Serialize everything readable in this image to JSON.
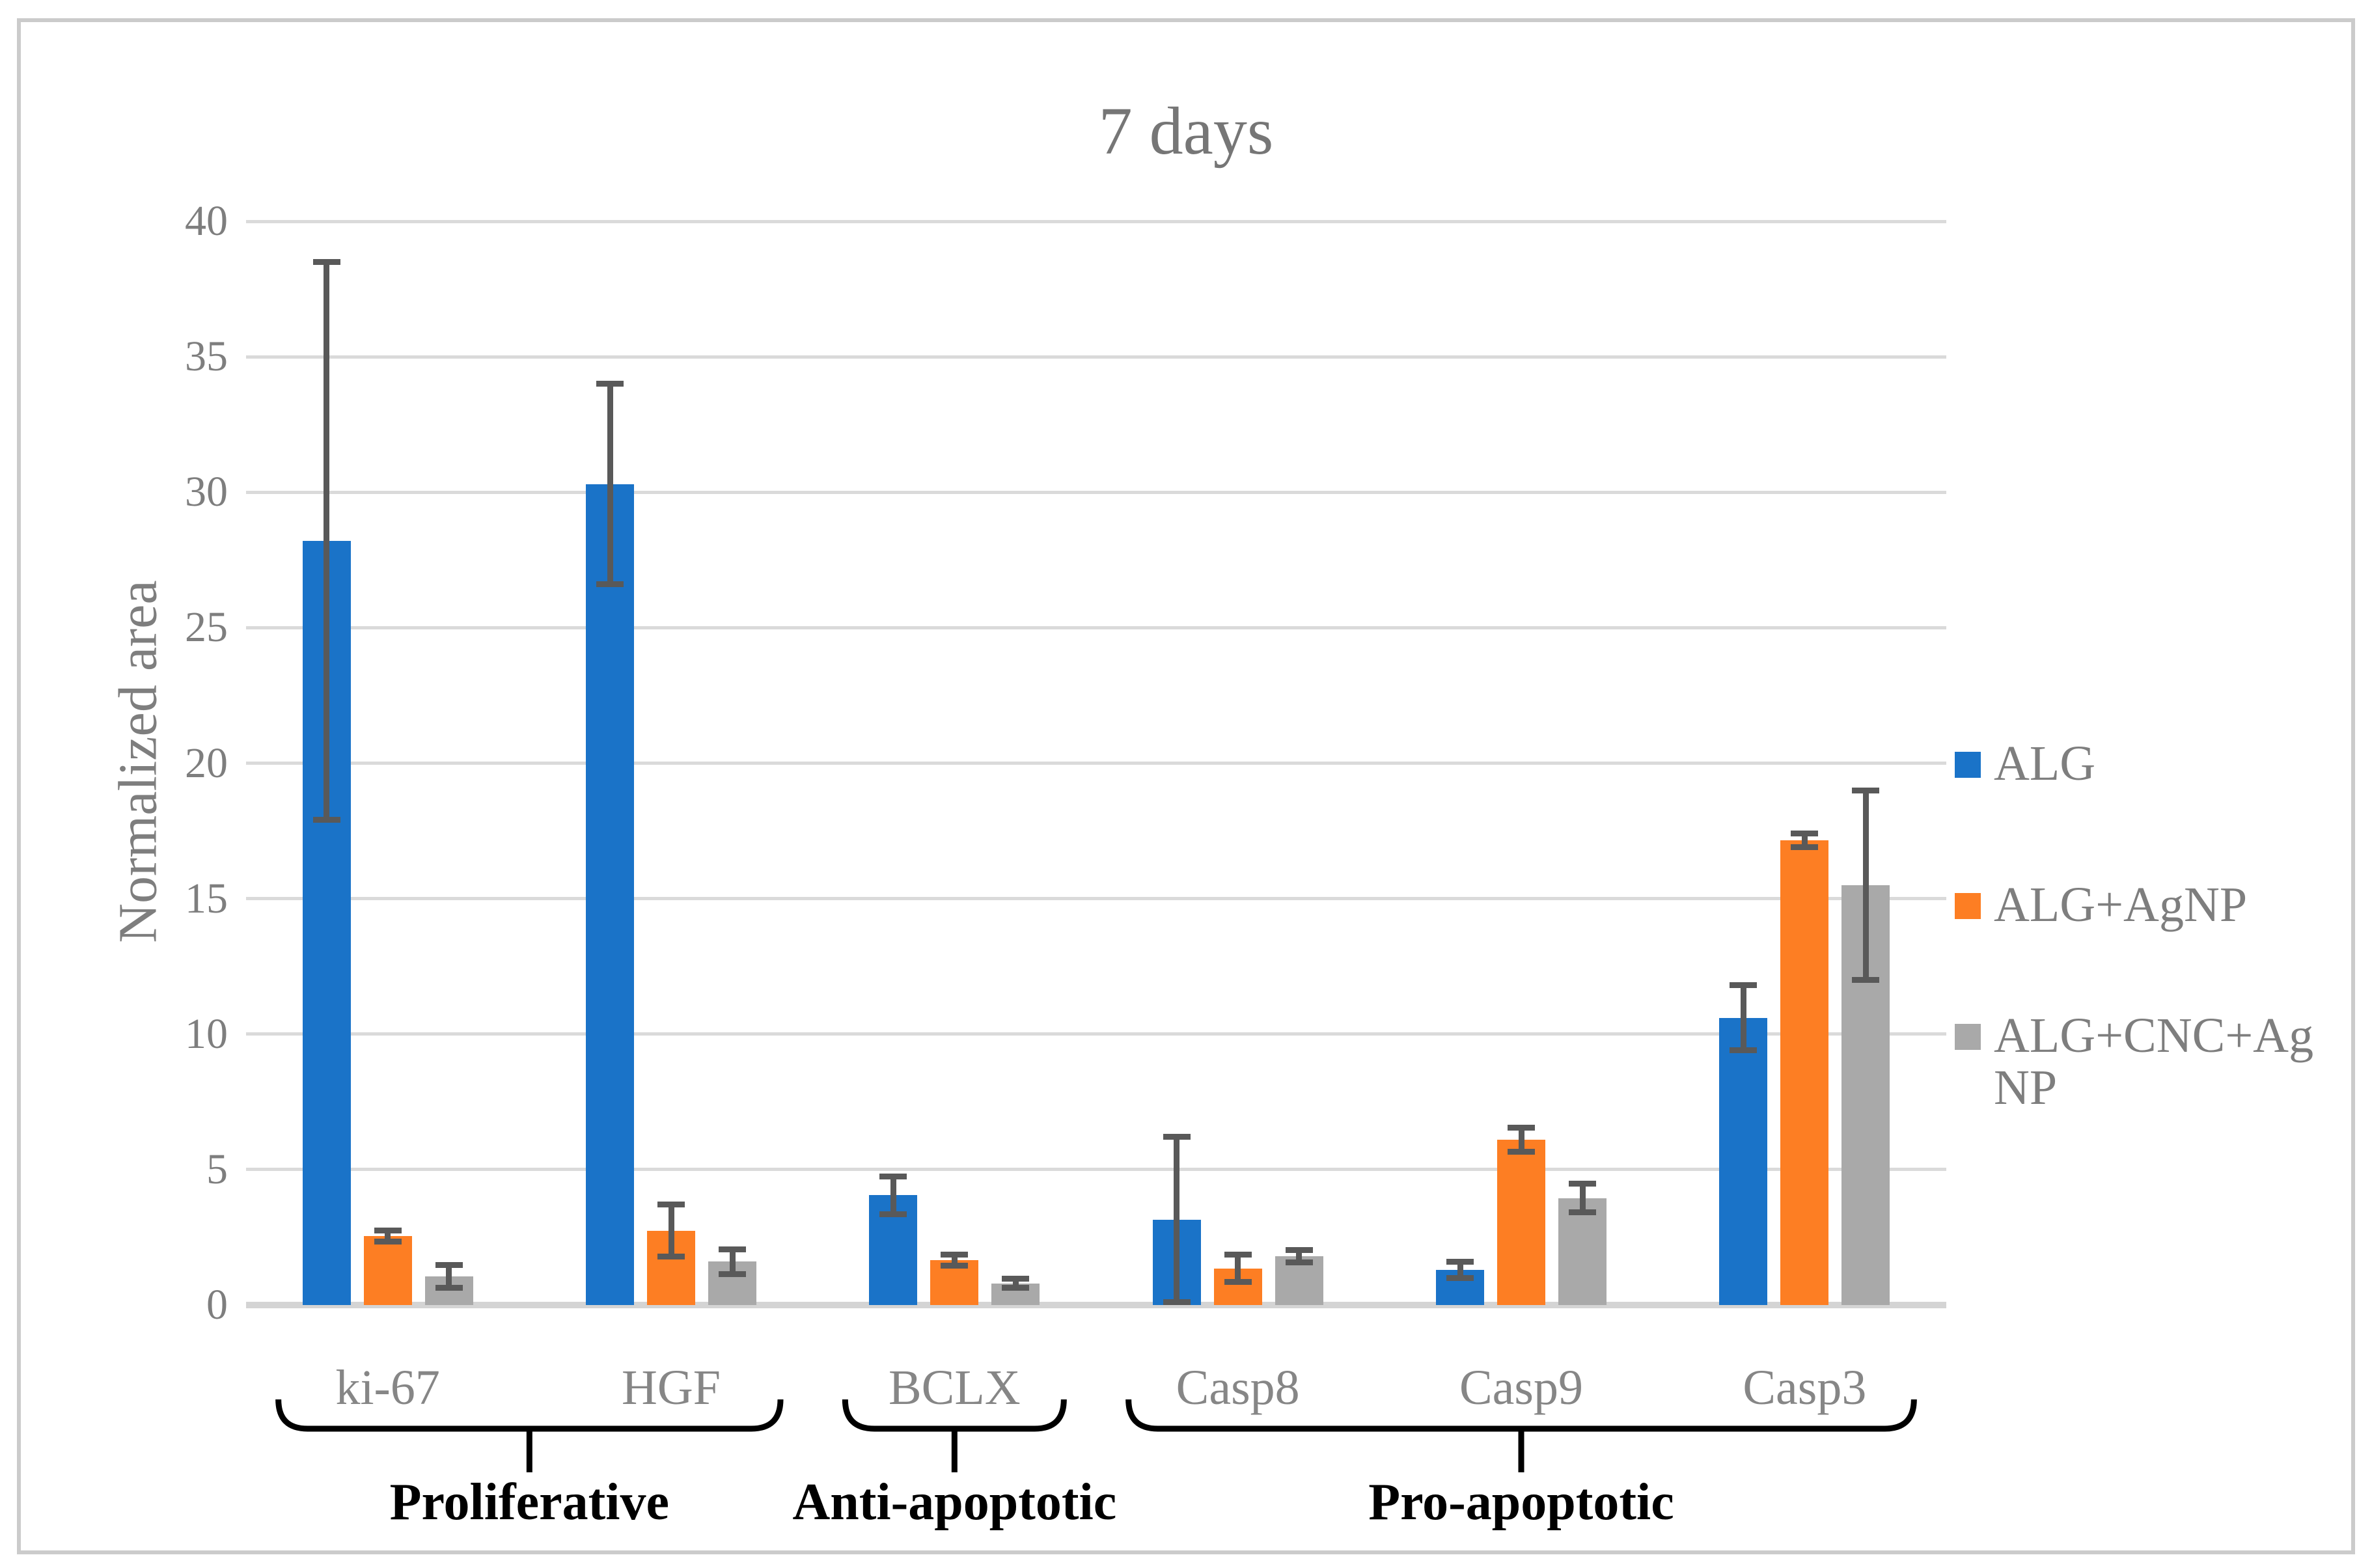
{
  "chart_data": {
    "type": "bar",
    "title": "7 days",
    "xlabel": "",
    "ylabel": "Normalized area",
    "ylim": [
      0,
      40
    ],
    "yticks": [
      0,
      5,
      10,
      15,
      20,
      25,
      30,
      35,
      40
    ],
    "grid": true,
    "legend_position": "right",
    "categories": [
      "ki-67",
      "HGF",
      "BCLX",
      "Casp8",
      "Casp9",
      "Casp3"
    ],
    "series": [
      {
        "name": "ALG",
        "color": "#1a73c8",
        "values": [
          28.2,
          30.3,
          4.05,
          3.15,
          1.3,
          10.6
        ],
        "errors": [
          10.3,
          3.7,
          0.7,
          3.05,
          0.3,
          1.2
        ],
        "legend_lines": [
          "ALG"
        ]
      },
      {
        "name": "ALG+AgNP",
        "color": "#fd7e23",
        "values": [
          2.55,
          2.75,
          1.65,
          1.35,
          6.1,
          17.15
        ],
        "errors": [
          0.2,
          0.95,
          0.2,
          0.5,
          0.45,
          0.25
        ],
        "legend_lines": [
          "ALG+AgNP"
        ]
      },
      {
        "name": "ALG+CNC+AgNP",
        "color": "#a9a9a9",
        "values": [
          1.05,
          1.6,
          0.8,
          1.8,
          3.95,
          15.5
        ],
        "errors": [
          0.42,
          0.46,
          0.17,
          0.22,
          0.53,
          3.5
        ],
        "legend_lines": [
          "ALG+CNC+Ag",
          "NP"
        ]
      }
    ],
    "groups": [
      {
        "label": "Proliferative",
        "from": 0,
        "to": 1
      },
      {
        "label": "Anti-apoptotic",
        "from": 2,
        "to": 2
      },
      {
        "label": "Pro-apoptotic",
        "from": 3,
        "to": 5
      }
    ]
  },
  "styles": {
    "background": "#ffffff",
    "border": "#cbcbcb",
    "gridline": "#dadada",
    "baseline": "#d4d4d4",
    "error_bar": "#595959",
    "tick_text": "#7e7e7e",
    "category_text": "#868686",
    "title_text": "#767676",
    "group_text": "#000000",
    "brace": "#000000"
  }
}
